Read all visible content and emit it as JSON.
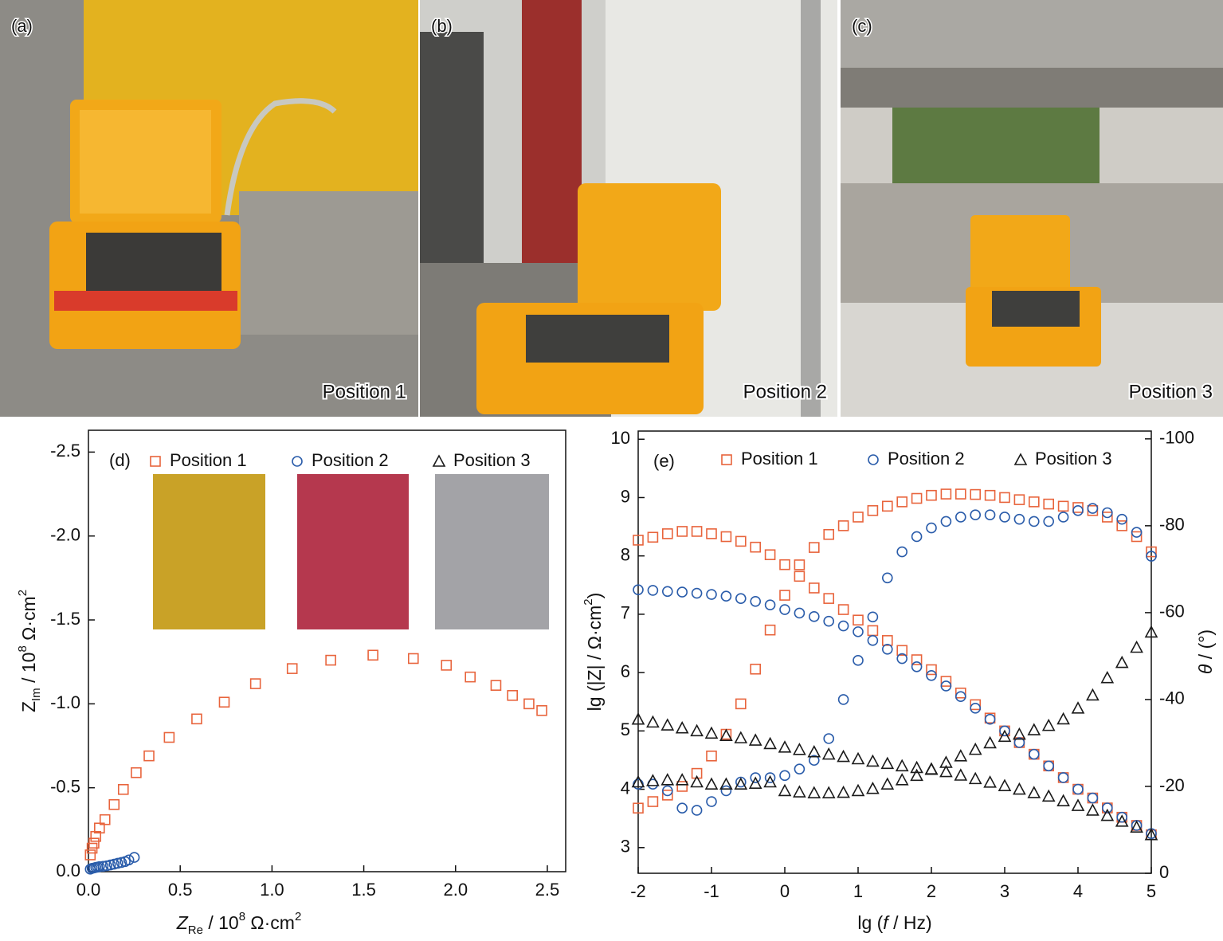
{
  "photos": [
    {
      "label": "(a)",
      "caption": "Position 1"
    },
    {
      "label": "(b)",
      "caption": "Position 2"
    },
    {
      "label": "(c)",
      "caption": "Position 3"
    }
  ],
  "chart_data": [
    {
      "type": "scatter",
      "label": "(d)",
      "x_label": [
        "Z",
        "Re",
        " / 10",
        "8",
        " Ω·cm",
        "2"
      ],
      "y_label": [
        "Z",
        "Im",
        " / 10",
        "8",
        " Ω·cm",
        "2"
      ],
      "xlim": [
        0,
        2.6
      ],
      "ylim": [
        0,
        -2.63
      ],
      "xticks": [
        {
          "value": 0,
          "label": "0.0"
        },
        0.5,
        {
          "value": 1,
          "label": "1.0"
        },
        1.5,
        {
          "value": 2,
          "label": "2.0"
        },
        2.5
      ],
      "yticks": [
        {
          "value": 0,
          "label": "0.0"
        },
        -0.5,
        {
          "value": -1,
          "label": "-1.0"
        },
        -1.5,
        {
          "value": -2,
          "label": "-2.0"
        },
        -2.5
      ],
      "series": [
        {
          "name": "Position 1",
          "color": "#e8643c",
          "marker": "square",
          "x": [
            0.01,
            0.02,
            0.03,
            0.04,
            0.06,
            0.09,
            0.14,
            0.19,
            0.26,
            0.33,
            0.44,
            0.59,
            0.74,
            0.91,
            1.11,
            1.32,
            1.55,
            1.77,
            1.95,
            2.08,
            2.22,
            2.31,
            2.4,
            2.47
          ],
          "values": [
            -0.1,
            -0.14,
            -0.17,
            -0.21,
            -0.26,
            -0.31,
            -0.4,
            -0.49,
            -0.59,
            -0.69,
            -0.8,
            -0.91,
            -1.01,
            -1.12,
            -1.21,
            -1.26,
            -1.29,
            -1.27,
            -1.23,
            -1.16,
            -1.11,
            -1.05,
            -1.0,
            -0.96
          ]
        },
        {
          "name": "Position 2",
          "color": "#2a5caa",
          "marker": "circle",
          "x": [
            0.01,
            0.02,
            0.03,
            0.04,
            0.05,
            0.06,
            0.08,
            0.1,
            0.12,
            0.14,
            0.16,
            0.18,
            0.2,
            0.22,
            0.25
          ],
          "values": [
            -0.015,
            -0.02,
            -0.022,
            -0.025,
            -0.027,
            -0.03,
            -0.032,
            -0.035,
            -0.04,
            -0.045,
            -0.05,
            -0.055,
            -0.06,
            -0.07,
            -0.085
          ]
        },
        {
          "name": "Position 3",
          "color": "#1a1a1a",
          "marker": "triangle",
          "x": [],
          "values": []
        }
      ]
    },
    {
      "type": "scatter",
      "label": "(e)",
      "x_label": [
        "lg (",
        "f",
        " / Hz)"
      ],
      "y_label": [
        "lg (|Z| / Ω·cm",
        "2",
        ")"
      ],
      "y2_label": [
        "θ",
        " / (°)"
      ],
      "xlim": [
        -2,
        5
      ],
      "ylim": [
        2.56,
        10.14
      ],
      "y2lim": [
        0,
        -101.8
      ],
      "xticks": [
        -2,
        -1,
        0,
        1,
        2,
        3,
        4,
        5
      ],
      "yticks": [
        3,
        4,
        5,
        6,
        7,
        8,
        9,
        10
      ],
      "y2ticks": [
        0,
        -20,
        -40,
        -60,
        -80,
        -100
      ],
      "x": [
        -2,
        -1.8,
        -1.6,
        -1.4,
        -1.2,
        -1,
        -0.8,
        -0.6,
        -0.4,
        -0.2,
        0,
        0.2,
        0.4,
        0.6,
        0.8,
        1,
        1.2,
        1.4,
        1.6,
        1.8,
        2,
        2.2,
        2.4,
        2.6,
        2.8,
        3,
        3.2,
        3.4,
        3.6,
        3.8,
        4,
        4.2,
        4.4,
        4.6,
        4.8,
        5
      ],
      "series": [
        {
          "name": "Position 1",
          "color": "#e8643c",
          "marker": "square",
          "values": [
            8.27,
            8.32,
            8.38,
            8.42,
            8.42,
            8.38,
            8.33,
            8.25,
            8.15,
            8.02,
            7.85,
            7.65,
            7.45,
            7.27,
            7.08,
            6.9,
            6.72,
            6.55,
            6.38,
            6.22,
            6.05,
            5.85,
            5.65,
            5.45,
            5.22,
            5.0,
            4.8,
            4.6,
            4.4,
            4.2,
            4.0,
            3.85,
            3.68,
            3.52,
            3.38,
            3.22
          ],
          "y2_values": [
            -15,
            -16.5,
            -18,
            -20,
            -23,
            -27,
            -32,
            -39,
            -47,
            -56,
            -64,
            -71,
            -75,
            -78,
            -80,
            -82,
            -83.5,
            -84.5,
            -85.5,
            -86.3,
            -87,
            -87.3,
            -87.3,
            -87.2,
            -87,
            -86.5,
            -86,
            -85.5,
            -85,
            -84.5,
            -84.2,
            -83.5,
            -82,
            -80,
            -77.5,
            -74
          ]
        },
        {
          "name": "Position 2",
          "color": "#2a5caa",
          "marker": "circle",
          "values": [
            7.42,
            7.41,
            7.39,
            7.38,
            7.36,
            7.34,
            7.31,
            7.27,
            7.22,
            7.16,
            7.08,
            7.02,
            6.96,
            6.88,
            6.8,
            6.7,
            6.55,
            6.4,
            6.24,
            6.1,
            5.95,
            5.77,
            5.59,
            5.39,
            5.2,
            5.0,
            4.8,
            4.6,
            4.4,
            4.2,
            4.0,
            3.85,
            3.68,
            3.52,
            3.38,
            3.24
          ],
          "y2_values": [
            -20.5,
            -20.5,
            -19,
            -15,
            -14.5,
            -16.5,
            -19,
            -21,
            -22,
            -22,
            -22.5,
            -24,
            -26,
            -31,
            -40,
            -49,
            -59,
            -68,
            -74,
            -77.5,
            -79.5,
            -81,
            -82,
            -82.5,
            -82.5,
            -82,
            -81.5,
            -81,
            -81,
            -82,
            -83.5,
            -84,
            -83,
            -81.5,
            -78.5,
            -73
          ]
        },
        {
          "name": "Position 3",
          "color": "#1a1a1a",
          "marker": "triangle",
          "values": [
            5.2,
            5.15,
            5.1,
            5.05,
            5.0,
            4.96,
            4.92,
            4.88,
            4.84,
            4.78,
            4.72,
            4.68,
            4.64,
            4.6,
            4.56,
            4.52,
            4.48,
            4.44,
            4.4,
            4.37,
            4.34,
            4.3,
            4.24,
            4.18,
            4.12,
            4.06,
            4.0,
            3.94,
            3.88,
            3.8,
            3.72,
            3.64,
            3.55,
            3.45,
            3.35,
            3.22
          ],
          "y2_values": [
            -21,
            -21.3,
            -21.5,
            -21.5,
            -21,
            -20.5,
            -20.5,
            -20.5,
            -20.7,
            -21,
            -19,
            -18.7,
            -18.5,
            -18.5,
            -18.6,
            -19,
            -19.5,
            -20.5,
            -21.5,
            -22.5,
            -24,
            -25.5,
            -27,
            -28.5,
            -30,
            -31.5,
            -32,
            -33,
            -34,
            -35.5,
            -38,
            -41,
            -45,
            -48.5,
            -52,
            -55.5
          ]
        }
      ]
    }
  ]
}
